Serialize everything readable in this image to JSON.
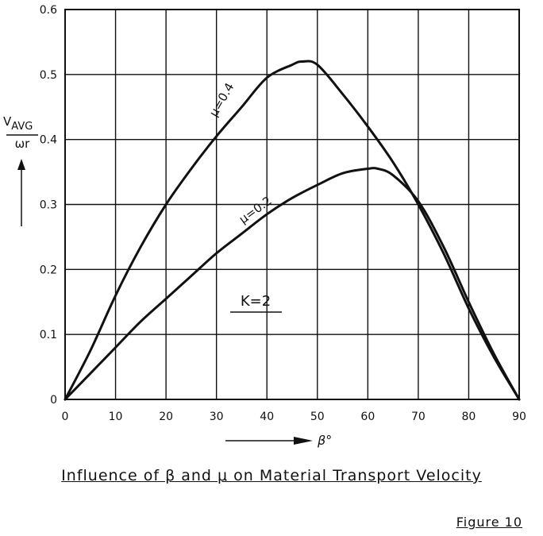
{
  "chart_data": {
    "type": "line",
    "xlabel": "β°",
    "ylabel": {
      "numerator": "V",
      "subscript": "AVG",
      "denominator": "ωr"
    },
    "xlim": [
      0,
      90
    ],
    "ylim": [
      0,
      0.6
    ],
    "x_ticks": [
      "0",
      "10",
      "20",
      "30",
      "40",
      "50",
      "60",
      "70",
      "80",
      "90"
    ],
    "y_ticks": [
      "0",
      "0.1",
      "0.2",
      "0.3",
      "0.4",
      "0.5",
      "0.6"
    ],
    "grid": true,
    "annotation": "K=2",
    "series": [
      {
        "name": "μ=0.4",
        "x": [
          0,
          5,
          10,
          15,
          20,
          25,
          30,
          35,
          40,
          45,
          47,
          50,
          55,
          60,
          65,
          70,
          75,
          80,
          85,
          90
        ],
        "y": [
          0,
          0.075,
          0.16,
          0.235,
          0.3,
          0.355,
          0.405,
          0.45,
          0.495,
          0.515,
          0.52,
          0.515,
          0.47,
          0.42,
          0.365,
          0.3,
          0.225,
          0.14,
          0.065,
          0
        ]
      },
      {
        "name": "μ=0.2",
        "x": [
          0,
          5,
          10,
          15,
          20,
          25,
          30,
          35,
          40,
          45,
          50,
          55,
          60,
          62,
          65,
          70,
          75,
          80,
          85,
          90
        ],
        "y": [
          0,
          0.04,
          0.08,
          0.12,
          0.155,
          0.19,
          0.225,
          0.255,
          0.285,
          0.31,
          0.33,
          0.348,
          0.355,
          0.355,
          0.345,
          0.305,
          0.235,
          0.15,
          0.07,
          0
        ]
      }
    ]
  },
  "caption": "Influence of β and μ on Material Transport Velocity",
  "figure_label": "Figure 10"
}
